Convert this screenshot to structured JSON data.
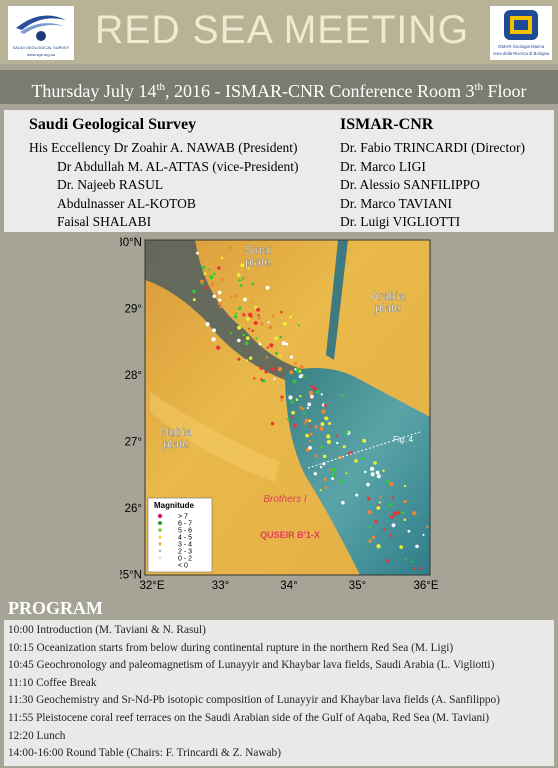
{
  "header": {
    "title": "RED SEA MEETING",
    "left_logo": {
      "name": "SAUDI GEOLOGICAL SURVEY",
      "url": "www.sgs.org.sa"
    },
    "right_logo": {
      "line1": "ISMAR Geologia Marina",
      "line2": "Area della Ricerca di Bologna"
    },
    "subtitle": [
      "Thursday July 14",
      "th",
      ", 2016 - ISMAR-CNR Conference Room 3",
      "th",
      " Floor"
    ]
  },
  "participants": {
    "left": {
      "heading": "Saudi Geological Survey",
      "lines": [
        "His  Eccellency Dr Zoahir A. NAWAB (President)",
        "Dr Abdullah M. AL-ATTAS (vice-President)",
        "Dr. Najeeb  RASUL",
        "Abdulnasser AL-KOTOB",
        "Faisal  SHALABI"
      ]
    },
    "right": {
      "heading": "ISMAR-CNR",
      "lines": [
        "Dr. Fabio TRINCARDI (Director)",
        "Dr. Marco LIGI",
        "Dr. Alessio SANFILIPPO",
        "Dr. Marco TAVIANI",
        "Dr. Luigi VIGLIOTTI"
      ]
    }
  },
  "map": {
    "lat_labels": [
      "30°N",
      "29°",
      "28°",
      "27°",
      "26°",
      "25°N"
    ],
    "lon_labels": [
      "32°E",
      "33°",
      "34°",
      "35°",
      "36°E"
    ],
    "places": [
      "Sinai\nplate",
      "Arabia\nplate",
      "Nubia\nplate",
      "Brothers I",
      "QUSEIR B'1-X",
      "Fig. 4"
    ],
    "legend": {
      "title": "Magnitude",
      "items": [
        "> 7",
        "6 - 7",
        "5 - 6",
        "4 - 5",
        "3 - 4",
        "2 - 3",
        "0 - 2",
        "< 0"
      ]
    }
  },
  "program": {
    "heading": "PROGRAM",
    "items": [
      "10:00 Introduction  (M. Taviani & N. Rasul)",
      "10:15 Oceanization starts from below during continental rupture in the northern Red Sea (M. Ligi)",
      "10:45 Geochronology and paleomagnetism of Lunayyir and Khaybar lava fields, Saudi Arabia (L. Vigliotti)",
      "11:10 Coffee Break",
      "11:30 Geochemistry and Sr-Nd-Pb isotopic composition of Lunayyir and Khaybar lava fields (A. Sanfilippo)",
      "11:55 Pleistocene coral reef terraces on the Saudi Arabian side of the Gulf of Aqaba, Red Sea (M. Taviani)",
      "12:20 Lunch",
      "14:00-16:00 Round Table (Chairs: F. Trincardi & Z. Nawab)"
    ]
  }
}
